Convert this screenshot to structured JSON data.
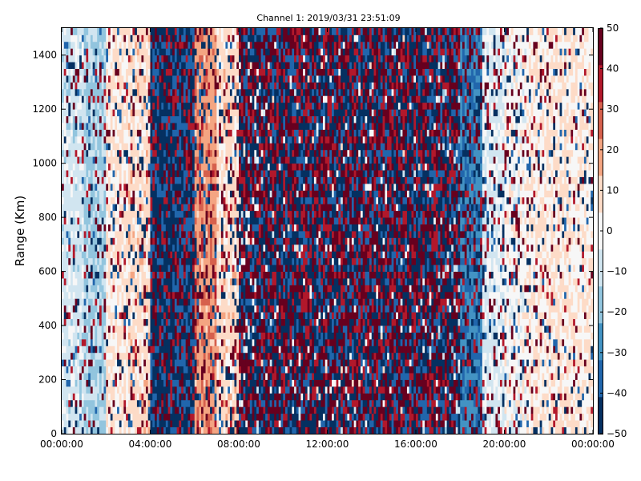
{
  "chart_data": {
    "type": "heatmap",
    "title": "Channel 1: 2019/03/31 23:51:09",
    "xlabel": "",
    "ylabel": "Range (Km)",
    "x_tick_labels": [
      "00:00:00",
      "04:00:00",
      "08:00:00",
      "12:00:00",
      "16:00:00",
      "20:00:00",
      "00:00:00"
    ],
    "x_tick_hours": [
      0,
      4,
      8,
      12,
      16,
      20,
      24
    ],
    "xlim_hours": [
      0,
      24
    ],
    "y_ticks": [
      0,
      200,
      400,
      600,
      800,
      1000,
      1200,
      1400
    ],
    "ylim": [
      0,
      1500
    ],
    "colorbar": {
      "ticks": [
        50,
        40,
        30,
        20,
        10,
        0,
        -10,
        -20,
        -30,
        -40,
        -50
      ],
      "range": [
        -50,
        50
      ],
      "colormap": "RdBu_r",
      "colors": [
        "#053061",
        "#2166ac",
        "#4393c3",
        "#92c5de",
        "#d1e5f0",
        "#f7f7f7",
        "#fddbc7",
        "#f4a582",
        "#d6604d",
        "#b2182b",
        "#67001f"
      ]
    },
    "grid": false,
    "hour_bins": 24,
    "range_bin_km": 25,
    "value_profile_by_hour": [
      {
        "hour": 0,
        "mean": -8,
        "noise": 0.15
      },
      {
        "hour": 1,
        "mean": -15,
        "noise": 0.2
      },
      {
        "hour": 2,
        "mean": 6,
        "noise": 0.2
      },
      {
        "hour": 3,
        "mean": 8,
        "noise": 0.2
      },
      {
        "hour": 4,
        "mean": -45,
        "noise": 0.7
      },
      {
        "hour": 5,
        "mean": -40,
        "noise": 0.7
      },
      {
        "hour": 6,
        "mean": 20,
        "noise": 0.3
      },
      {
        "hour": 7,
        "mean": 8,
        "noise": 0.25
      },
      {
        "hour": 8,
        "mean": 0,
        "noise": 0.9
      },
      {
        "hour": 9,
        "mean": 0,
        "noise": 0.95
      },
      {
        "hour": 10,
        "mean": 0,
        "noise": 0.95
      },
      {
        "hour": 11,
        "mean": 0,
        "noise": 0.95
      },
      {
        "hour": 12,
        "mean": 0,
        "noise": 0.95
      },
      {
        "hour": 13,
        "mean": 0,
        "noise": 0.95
      },
      {
        "hour": 14,
        "mean": 0,
        "noise": 0.95
      },
      {
        "hour": 15,
        "mean": 0,
        "noise": 0.95
      },
      {
        "hour": 16,
        "mean": 0,
        "noise": 0.95
      },
      {
        "hour": 17,
        "mean": -10,
        "noise": 0.9
      },
      {
        "hour": 18,
        "mean": -30,
        "noise": 0.4
      },
      {
        "hour": 19,
        "mean": -5,
        "noise": 0.25
      },
      {
        "hour": 20,
        "mean": 0,
        "noise": 0.2
      },
      {
        "hour": 21,
        "mean": 4,
        "noise": 0.15
      },
      {
        "hour": 22,
        "mean": 6,
        "noise": 0.15
      },
      {
        "hour": 23,
        "mean": 4,
        "noise": 0.15
      }
    ]
  }
}
